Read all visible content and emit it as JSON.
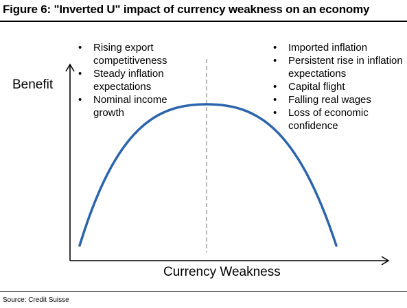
{
  "header": {
    "title": "Figure 6: \"Inverted U\" impact of currency weakness on an economy"
  },
  "diagram": {
    "y_axis_label": "Benefit",
    "x_axis_label": "Currency Weakness",
    "left_points": [
      "Rising export competitiveness",
      "Steady inflation expectations",
      "Nominal income growth"
    ],
    "right_points": [
      "Imported inflation",
      "Persistent rise in inflation expectations",
      "Capital flight",
      "Falling real wages",
      "Loss of economic confidence"
    ],
    "bullet_glyph": "•",
    "colors": {
      "curve": "#2b63ad",
      "axes": "#000000",
      "peak_line": "#9a9a9a"
    }
  },
  "footer": {
    "source": "Source: Credit Suisse"
  }
}
